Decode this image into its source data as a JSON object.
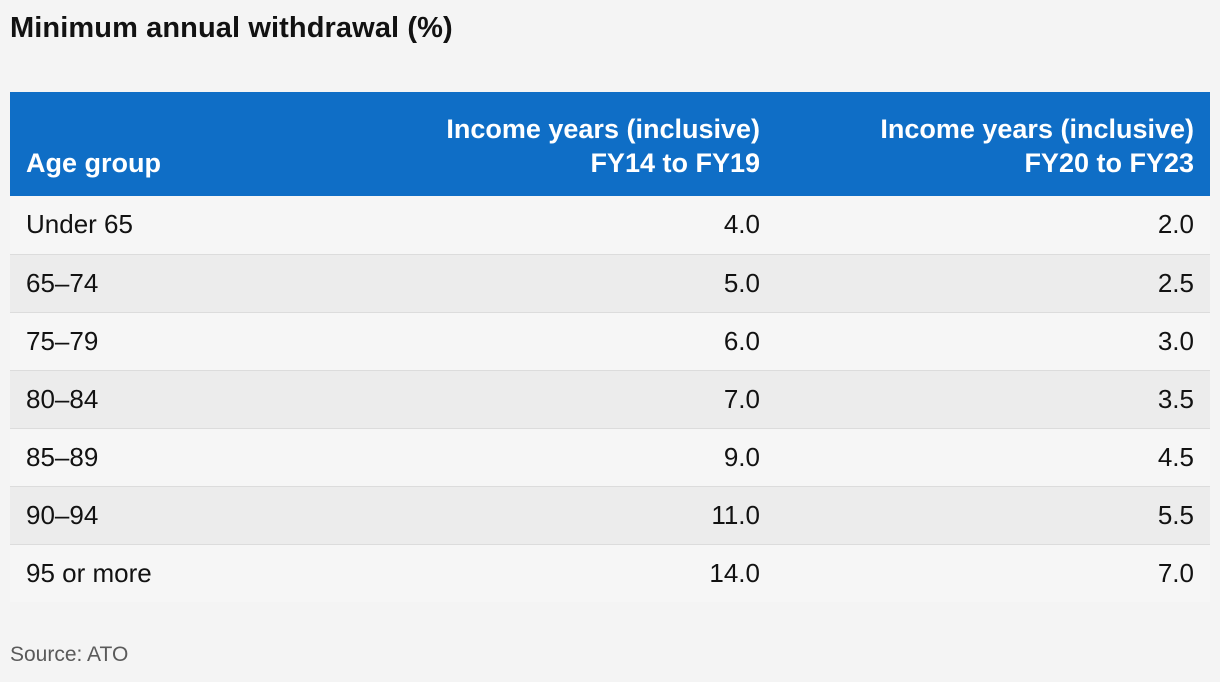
{
  "chart_data": {
    "type": "table",
    "title": "Minimum annual withdrawal (%)",
    "columns": [
      "Age group",
      "Income years (inclusive) FY14 to FY19",
      "Income years (inclusive) FY20 to FY23"
    ],
    "header": {
      "age": "Age group",
      "col1_line1": "Income years (inclusive)",
      "col1_line2": "FY14 to FY19",
      "col2_line1": "Income years (inclusive)",
      "col2_line2": "FY20 to FY23"
    },
    "rows": [
      {
        "age": "Under 65",
        "fy14_fy19": "4.0",
        "fy20_fy23": "2.0"
      },
      {
        "age": "65–74",
        "fy14_fy19": "5.0",
        "fy20_fy23": "2.5"
      },
      {
        "age": "75–79",
        "fy14_fy19": "6.0",
        "fy20_fy23": "3.0"
      },
      {
        "age": "80–84",
        "fy14_fy19": "7.0",
        "fy20_fy23": "3.5"
      },
      {
        "age": "85–89",
        "fy14_fy19": "9.0",
        "fy20_fy23": "4.5"
      },
      {
        "age": "90–94",
        "fy14_fy19": "11.0",
        "fy20_fy23": "5.5"
      },
      {
        "age": "95 or more",
        "fy14_fy19": "14.0",
        "fy20_fy23": "7.0"
      }
    ],
    "source": "Source: ATO",
    "header_color": "#0f6ec6"
  }
}
